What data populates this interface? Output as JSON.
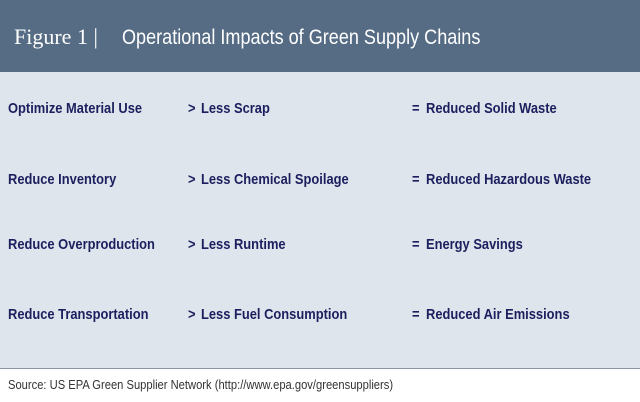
{
  "header": {
    "label": "Figure 1 |",
    "title": "Operational Impacts of Green Supply Chains"
  },
  "table": {
    "rows": [
      [
        "Optimize Material Use",
        ">",
        "Less Scrap",
        "=",
        "Reduced Solid Waste"
      ],
      [
        "Reduce Inventory",
        ">",
        "Less Chemical Spoilage",
        "=",
        "Reduced Hazardous Waste"
      ],
      [
        "Reduce Overproduction",
        ">",
        "Less Runtime",
        "=",
        "Energy Savings"
      ],
      [
        "Reduce Transportation",
        ">",
        "Less Fuel Consumption",
        "=",
        "Reduced Air Emissions"
      ]
    ]
  },
  "source": "Source: US EPA Green Supplier Network (http://www.epa.gov/greensuppliers)"
}
